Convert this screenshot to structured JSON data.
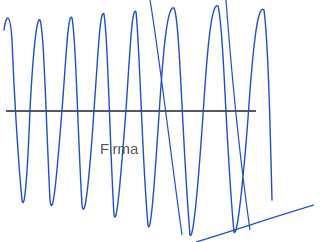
{
  "signature": {
    "label": "Firma"
  }
}
